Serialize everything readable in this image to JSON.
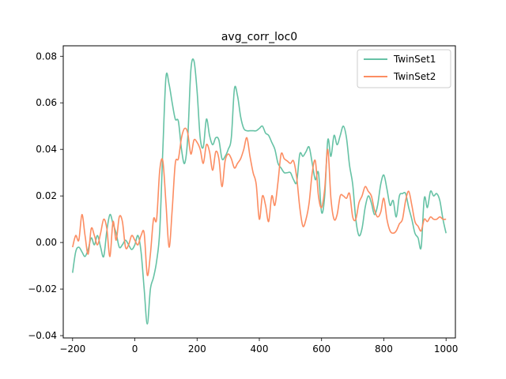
{
  "chart_data": {
    "type": "line",
    "title": "avg_corr_loc0",
    "xlabel": "",
    "ylabel": "",
    "xlim": [
      -230,
      1030
    ],
    "ylim": [
      -0.041,
      0.0845
    ],
    "xticks": [
      -200,
      0,
      200,
      400,
      600,
      800,
      1000
    ],
    "xtick_labels": [
      "−200",
      "0",
      "200",
      "400",
      "600",
      "800",
      "1000"
    ],
    "yticks": [
      -0.04,
      -0.02,
      0.0,
      0.02,
      0.04,
      0.06,
      0.08
    ],
    "ytick_labels": [
      "−0.04",
      "−0.02",
      "0.00",
      "0.02",
      "0.04",
      "0.06",
      "0.08"
    ],
    "grid": false,
    "legend_position": "top-right",
    "series": [
      {
        "name": "TwinSet1",
        "color": "#66c2a5",
        "x": [
          -200,
          -190,
          -180,
          -170,
          -160,
          -150,
          -140,
          -130,
          -120,
          -110,
          -100,
          -90,
          -80,
          -70,
          -60,
          -50,
          -40,
          -30,
          -20,
          -10,
          0,
          10,
          20,
          30,
          40,
          50,
          60,
          70,
          80,
          90,
          100,
          110,
          120,
          130,
          140,
          150,
          160,
          170,
          180,
          190,
          200,
          210,
          220,
          230,
          240,
          250,
          260,
          270,
          280,
          290,
          300,
          310,
          320,
          330,
          340,
          350,
          360,
          370,
          380,
          390,
          400,
          410,
          420,
          430,
          440,
          450,
          460,
          470,
          480,
          490,
          500,
          510,
          520,
          530,
          540,
          550,
          560,
          570,
          580,
          590,
          600,
          610,
          620,
          630,
          640,
          650,
          660,
          670,
          680,
          690,
          700,
          710,
          720,
          730,
          740,
          750,
          760,
          770,
          780,
          790,
          800,
          810,
          820,
          830,
          840,
          850,
          860,
          870,
          880,
          890,
          900,
          910,
          920,
          930,
          940,
          950,
          960,
          970,
          980,
          990,
          1000
        ],
        "y": [
          -0.013,
          -0.004,
          -0.002,
          -0.004,
          -0.006,
          -0.003,
          0.002,
          -0.001,
          0.003,
          -0.002,
          -0.006,
          0.005,
          0.012,
          0.008,
          0.004,
          -0.002,
          -0.001,
          0.001,
          -0.001,
          -0.003,
          -0.001,
          0.003,
          -0.004,
          -0.02,
          -0.035,
          -0.02,
          -0.015,
          -0.008,
          0.005,
          0.04,
          0.071,
          0.068,
          0.06,
          0.053,
          0.052,
          0.04,
          0.034,
          0.045,
          0.074,
          0.078,
          0.065,
          0.045,
          0.041,
          0.053,
          0.046,
          0.042,
          0.045,
          0.044,
          0.036,
          0.037,
          0.04,
          0.045,
          0.066,
          0.063,
          0.054,
          0.049,
          0.048,
          0.048,
          0.048,
          0.048,
          0.049,
          0.05,
          0.047,
          0.046,
          0.043,
          0.04,
          0.034,
          0.032,
          0.03,
          0.03,
          0.03,
          0.027,
          0.026,
          0.038,
          0.037,
          0.039,
          0.041,
          0.034,
          0.027,
          0.03,
          0.013,
          0.02,
          0.044,
          0.037,
          0.046,
          0.042,
          0.046,
          0.05,
          0.045,
          0.033,
          0.025,
          0.01,
          0.003,
          0.006,
          0.015,
          0.02,
          0.017,
          0.012,
          0.016,
          0.025,
          0.029,
          0.023,
          0.016,
          0.018,
          0.011,
          0.02,
          0.021,
          0.021,
          0.015,
          0.01,
          0.004,
          0.002,
          -0.002,
          0.019,
          0.015,
          0.022,
          0.02,
          0.021,
          0.018,
          0.01,
          0.004
        ]
      },
      {
        "name": "TwinSet2",
        "color": "#fc8d62",
        "x": [
          -200,
          -190,
          -180,
          -170,
          -160,
          -150,
          -140,
          -130,
          -120,
          -110,
          -100,
          -90,
          -80,
          -70,
          -60,
          -50,
          -40,
          -30,
          -20,
          -10,
          0,
          10,
          20,
          30,
          40,
          50,
          60,
          70,
          80,
          90,
          100,
          110,
          120,
          130,
          140,
          150,
          160,
          170,
          180,
          190,
          200,
          210,
          220,
          230,
          240,
          250,
          260,
          270,
          280,
          290,
          300,
          310,
          320,
          330,
          340,
          350,
          360,
          370,
          380,
          390,
          400,
          410,
          420,
          430,
          440,
          450,
          460,
          470,
          480,
          490,
          500,
          510,
          520,
          530,
          540,
          550,
          560,
          570,
          580,
          590,
          600,
          610,
          620,
          630,
          640,
          650,
          660,
          670,
          680,
          690,
          700,
          710,
          720,
          730,
          740,
          750,
          760,
          770,
          780,
          790,
          800,
          810,
          820,
          830,
          840,
          850,
          860,
          870,
          880,
          890,
          900,
          910,
          920,
          930,
          940,
          950,
          960,
          970,
          980,
          990,
          1000
        ],
        "y": [
          -0.002,
          0.003,
          0.001,
          0.012,
          0.003,
          -0.005,
          0.006,
          0.003,
          -0.001,
          0.004,
          0.01,
          0.006,
          -0.006,
          0.009,
          0.001,
          0.011,
          0.009,
          -0.002,
          -0.001,
          0.003,
          0.001,
          -0.001,
          0.003,
          0.004,
          -0.014,
          -0.005,
          0.01,
          0.01,
          0.031,
          0.035,
          0.017,
          -0.002,
          0.014,
          0.034,
          0.036,
          0.045,
          0.049,
          0.047,
          0.038,
          0.044,
          0.043,
          0.04,
          0.034,
          0.042,
          0.039,
          0.031,
          0.039,
          0.036,
          0.024,
          0.035,
          0.038,
          0.036,
          0.032,
          0.034,
          0.036,
          0.04,
          0.045,
          0.037,
          0.03,
          0.025,
          0.01,
          0.02,
          0.016,
          0.009,
          0.02,
          0.016,
          0.026,
          0.038,
          0.036,
          0.035,
          0.034,
          0.035,
          0.028,
          0.015,
          0.007,
          0.01,
          0.017,
          0.03,
          0.035,
          0.02,
          0.015,
          0.023,
          0.04,
          0.019,
          0.01,
          0.012,
          0.02,
          0.02,
          0.019,
          0.021,
          0.011,
          0.01,
          0.017,
          0.02,
          0.024,
          0.022,
          0.02,
          0.014,
          0.011,
          0.013,
          0.019,
          0.01,
          0.005,
          0.004,
          0.005,
          0.008,
          0.01,
          0.018,
          0.022,
          0.016,
          0.009,
          0.007,
          0.005,
          0.01,
          0.009,
          0.011,
          0.01,
          0.01,
          0.011,
          0.01,
          0.01
        ]
      }
    ]
  }
}
